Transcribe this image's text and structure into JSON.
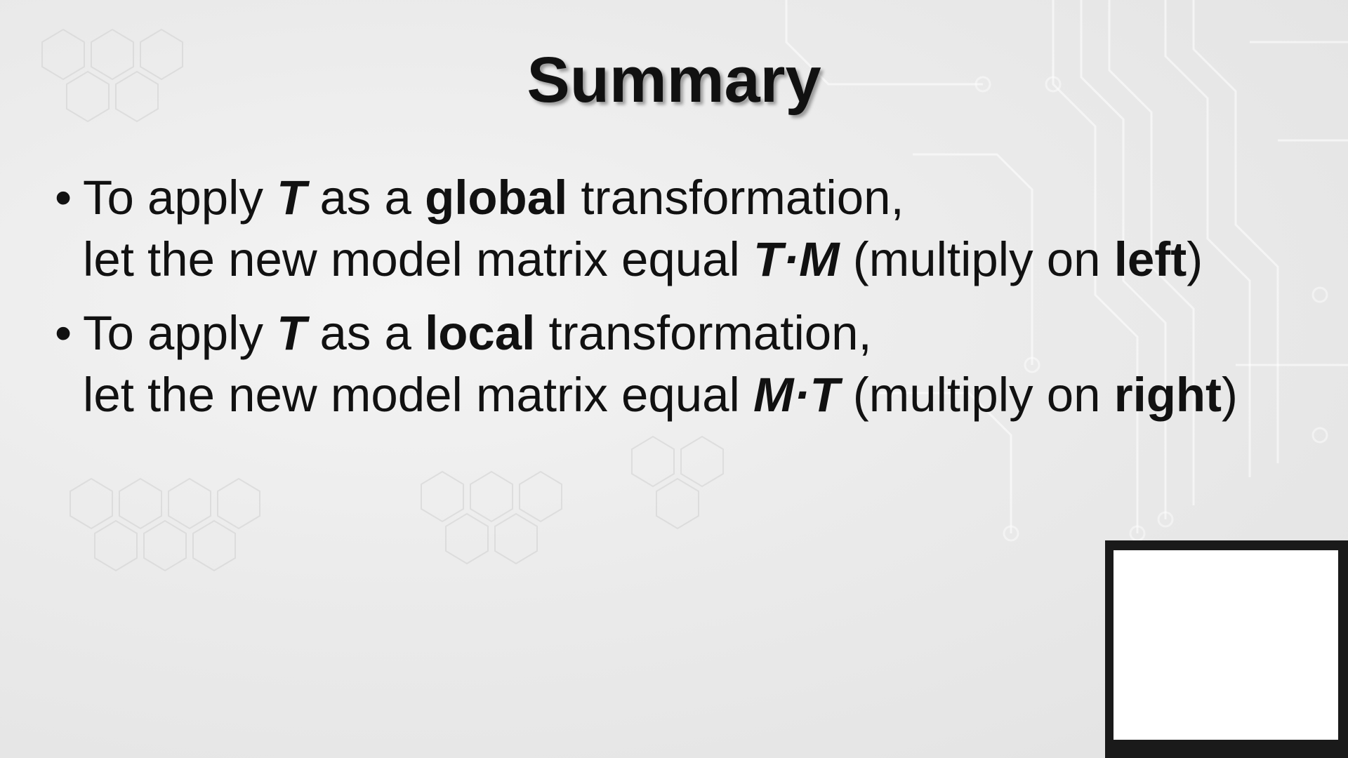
{
  "slide": {
    "title": "Summary",
    "bullet_marker": "•",
    "bullets": [
      {
        "l1_a": "To apply ",
        "l1_T": "T",
        "l1_b": " as a ",
        "l1_kw": "global",
        "l1_c": " transformation,",
        "l2_a": "let the new model matrix equal ",
        "l2_expr": "T·M",
        "l2_b": " (multiply on ",
        "l2_kw": "left",
        "l2_c": ")"
      },
      {
        "l1_a": "To apply ",
        "l1_T": "T",
        "l1_b": " as a ",
        "l1_kw": "local",
        "l1_c": " transformation,",
        "l2_a": "let the new model matrix equal ",
        "l2_expr": "M·T",
        "l2_b": " (multiply on ",
        "l2_kw": "right",
        "l2_c": ")"
      }
    ]
  },
  "colors": {
    "text": "#111111",
    "background": "#ececec",
    "webcam_frame": "#1a1a1a",
    "webcam_screen": "#ffffff"
  }
}
